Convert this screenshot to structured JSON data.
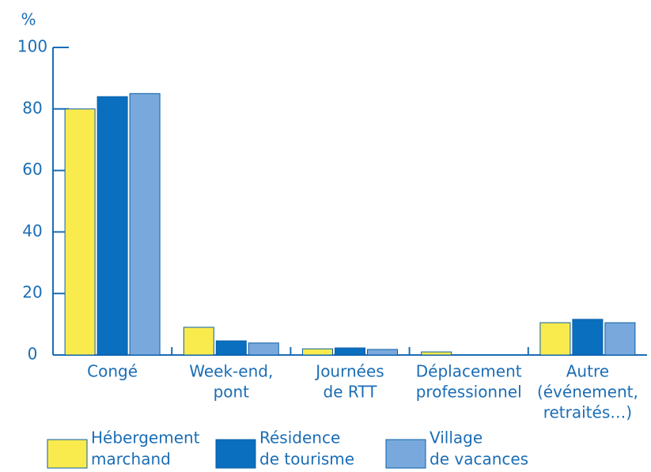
{
  "chart_data": {
    "type": "bar",
    "y_label": "%",
    "categories": [
      [
        "Congé"
      ],
      [
        "Week-end,",
        "pont"
      ],
      [
        "Journées",
        "de RTT"
      ],
      [
        "Déplacement",
        "professionnel"
      ],
      [
        "Autre",
        "(événement,",
        "retraités…)"
      ]
    ],
    "series": [
      {
        "name": [
          "Hébergement",
          "marchand"
        ],
        "color": "#f9eb4e",
        "values": [
          80,
          9,
          2,
          1,
          10.5
        ]
      },
      {
        "name": [
          "Résidence",
          "de tourisme"
        ],
        "color": "#0a6fbf",
        "values": [
          84,
          4.6,
          2.3,
          0,
          11.6
        ]
      },
      {
        "name": [
          "Village",
          "de vacances"
        ],
        "color": "#79a9dc",
        "values": [
          85,
          3.9,
          1.8,
          0,
          10.5
        ]
      }
    ],
    "ylim": [
      0,
      100
    ],
    "yticks": [
      0,
      20,
      40,
      60,
      80,
      100
    ],
    "grid": false
  }
}
